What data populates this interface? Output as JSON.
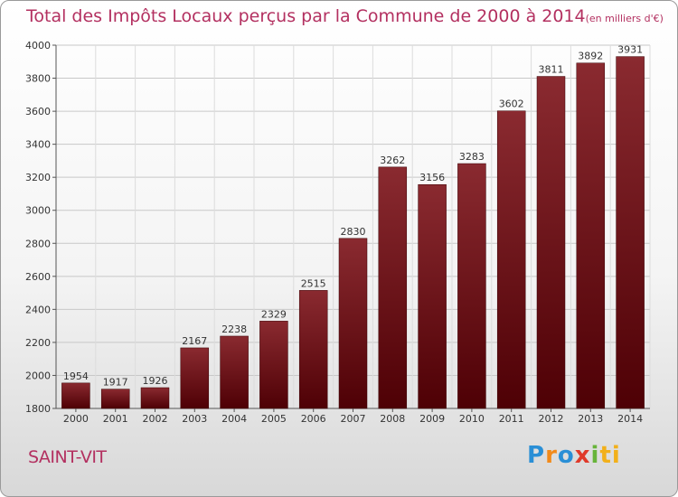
{
  "chart_data": {
    "type": "bar",
    "title": "Total des Impôts Locaux perçus par la Commune de 2000 à 2014",
    "unit_label": "(en milliers d'€)",
    "categories": [
      "2000",
      "2001",
      "2002",
      "2003",
      "2004",
      "2005",
      "2006",
      "2007",
      "2008",
      "2009",
      "2010",
      "2011",
      "2012",
      "2013",
      "2014"
    ],
    "values": [
      1954,
      1917,
      1926,
      2167,
      2238,
      2329,
      2515,
      2830,
      3262,
      3156,
      3283,
      3602,
      3811,
      3892,
      3931
    ],
    "ylim": [
      1800,
      4000
    ],
    "yticks": [
      1800,
      2000,
      2200,
      2400,
      2600,
      2800,
      3000,
      3200,
      3400,
      3600,
      3800,
      4000
    ],
    "xlabel": "",
    "ylabel": "",
    "grid": true,
    "bar_color": "#7a1a1f"
  },
  "commune": "SAINT-VIT",
  "logo": {
    "letters": [
      "P",
      "r",
      "o",
      "x",
      "i",
      "ti"
    ]
  }
}
